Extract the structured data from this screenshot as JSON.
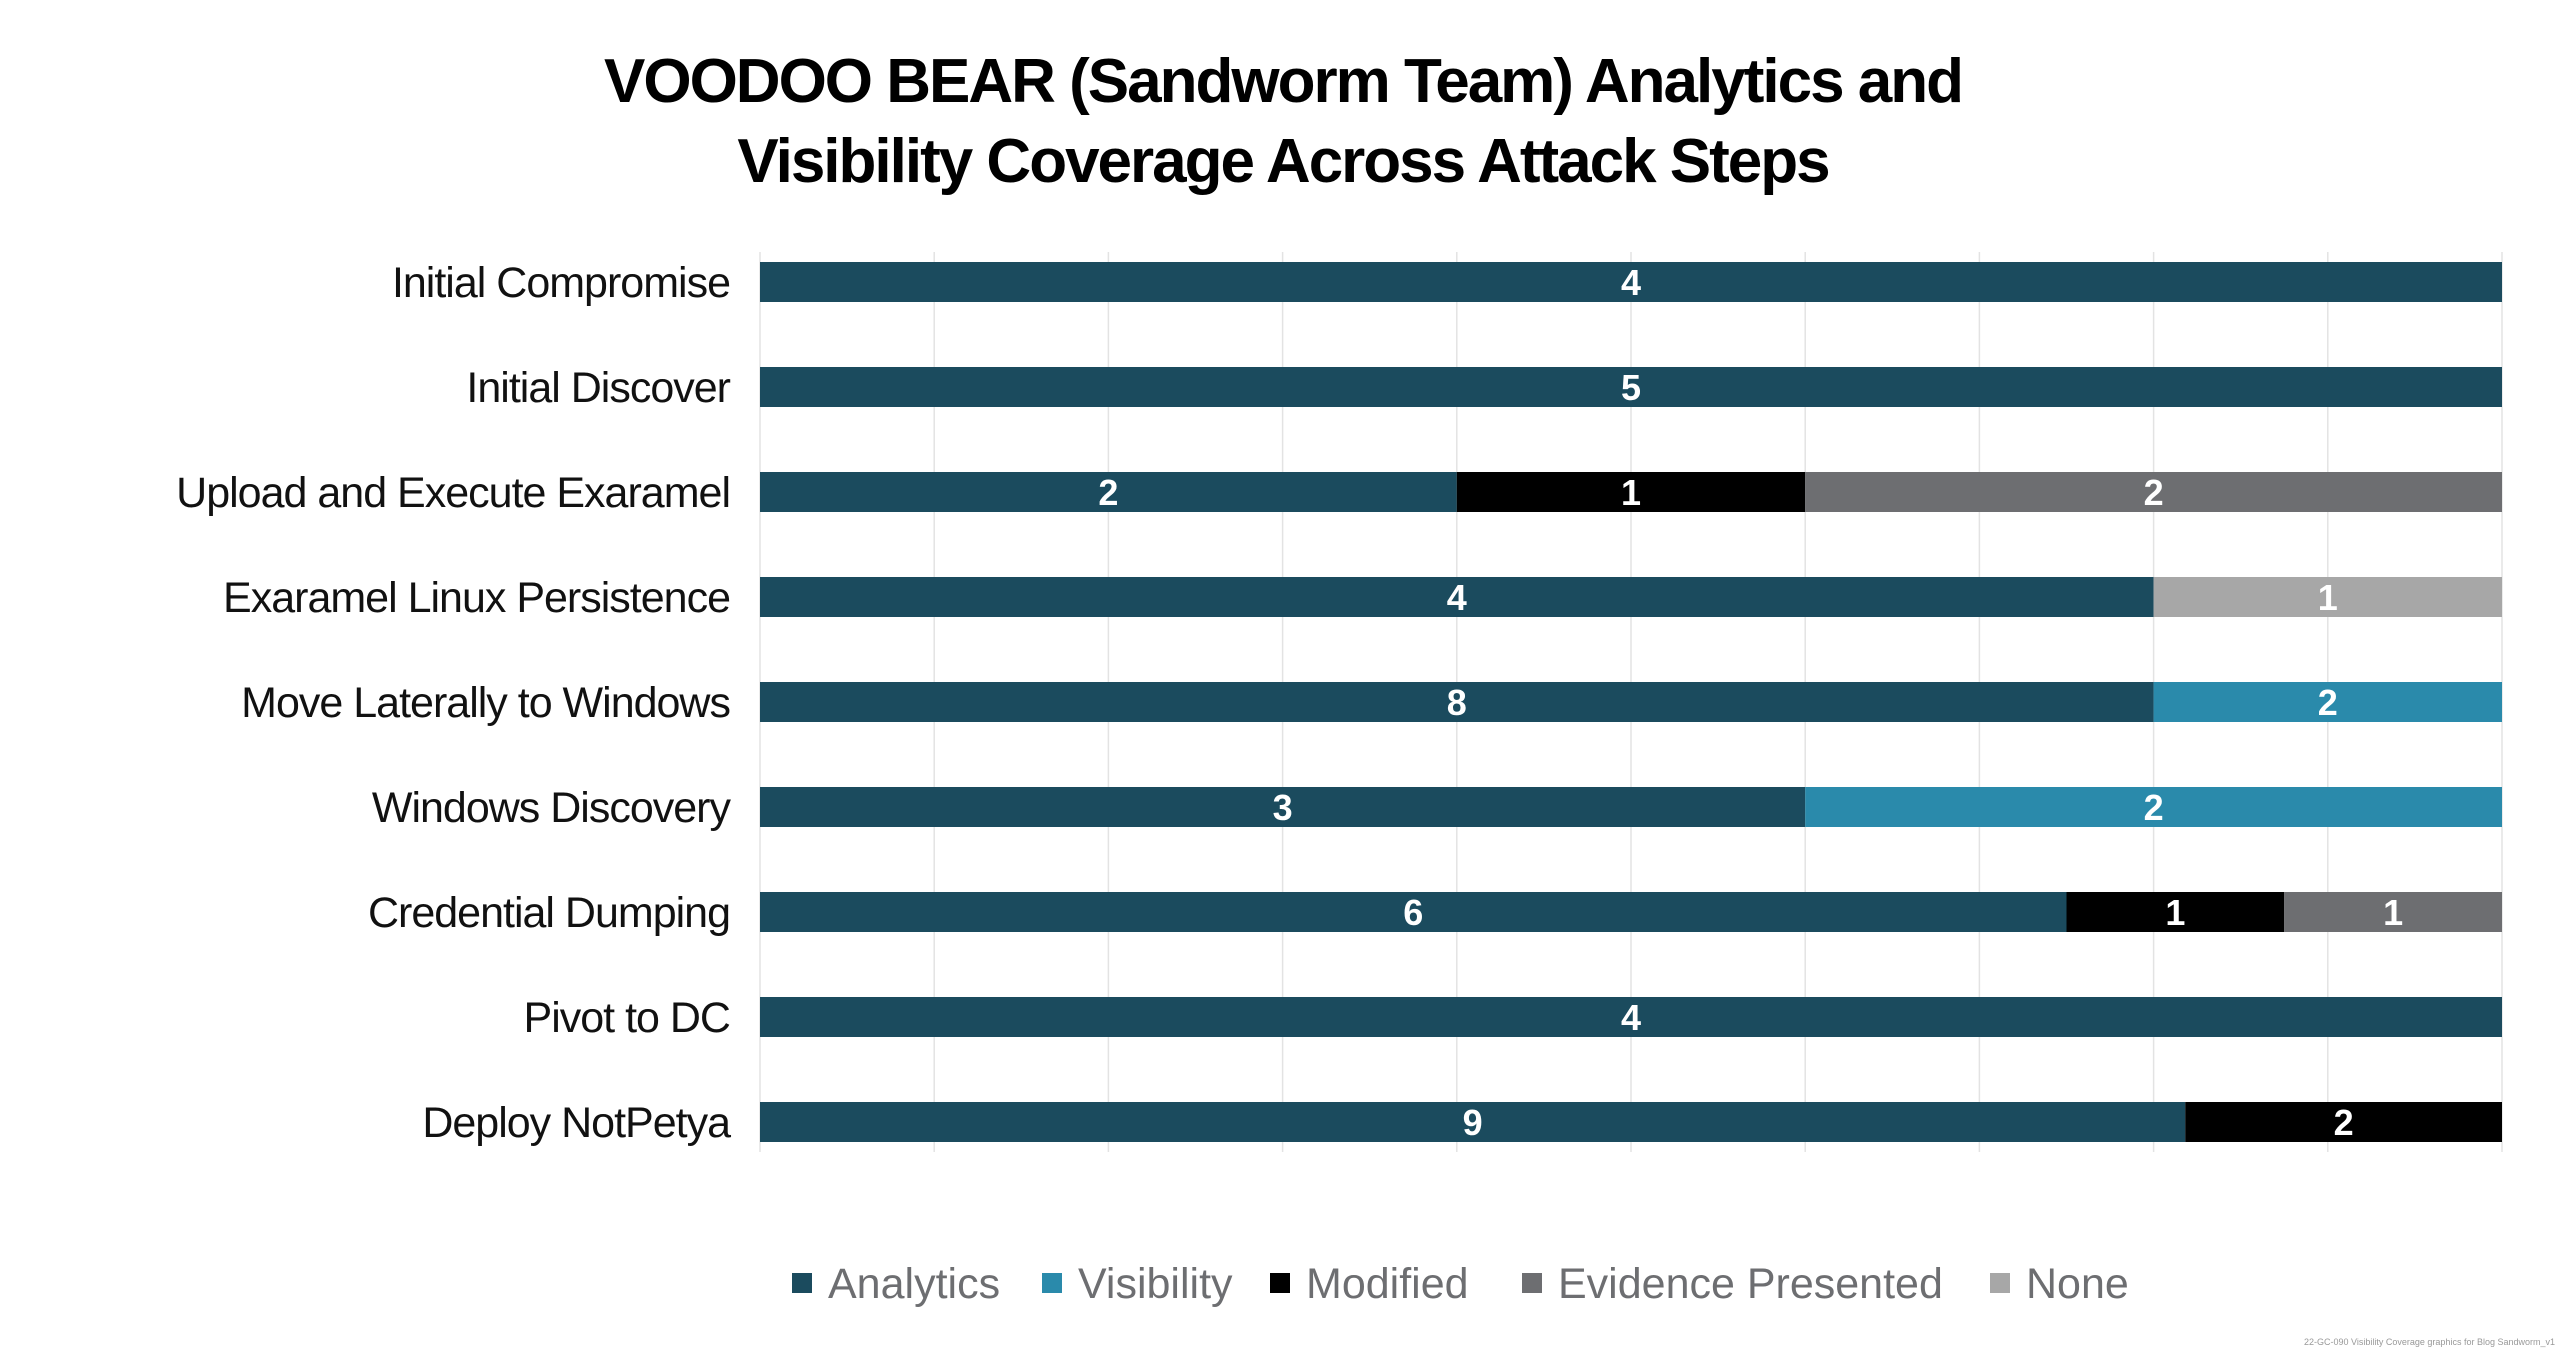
{
  "chart_data": {
    "type": "bar",
    "orientation": "horizontal",
    "stacking": "percent",
    "title": [
      "VOODOO BEAR (Sandworm Team) Analytics and",
      "Visibility Coverage Across Attack Steps"
    ],
    "categories": [
      "Initial Compromise",
      "Initial Discover",
      "Upload and Execute Exaramel",
      "Exaramel Linux Persistence",
      "Move Laterally to Windows",
      "Windows Discovery",
      "Credential Dumping",
      "Pivot to DC",
      "Deploy NotPetya"
    ],
    "series": [
      {
        "name": "Analytics",
        "color": "#1b4b5e",
        "values": [
          4,
          5,
          2,
          4,
          8,
          3,
          6,
          4,
          9
        ]
      },
      {
        "name": "Visibility",
        "color": "#2a8aab",
        "values": [
          0,
          0,
          0,
          0,
          2,
          2,
          0,
          0,
          0
        ]
      },
      {
        "name": "Modified",
        "color": "#000000",
        "values": [
          0,
          0,
          1,
          0,
          0,
          0,
          1,
          0,
          2
        ]
      },
      {
        "name": "Evidence Presented",
        "color": "#6d6e71",
        "values": [
          0,
          0,
          2,
          0,
          0,
          0,
          1,
          0,
          0
        ]
      },
      {
        "name": "None",
        "color": "#a7a7a7",
        "values": [
          0,
          0,
          0,
          1,
          0,
          0,
          0,
          0,
          0
        ]
      }
    ],
    "xlim": [
      0,
      100
    ],
    "grid": true,
    "legend_position": "bottom-center",
    "xlabel": "",
    "ylabel": ""
  },
  "footer": "22-GC-090 Visibility Coverage graphics for Blog Sandworm_v1"
}
